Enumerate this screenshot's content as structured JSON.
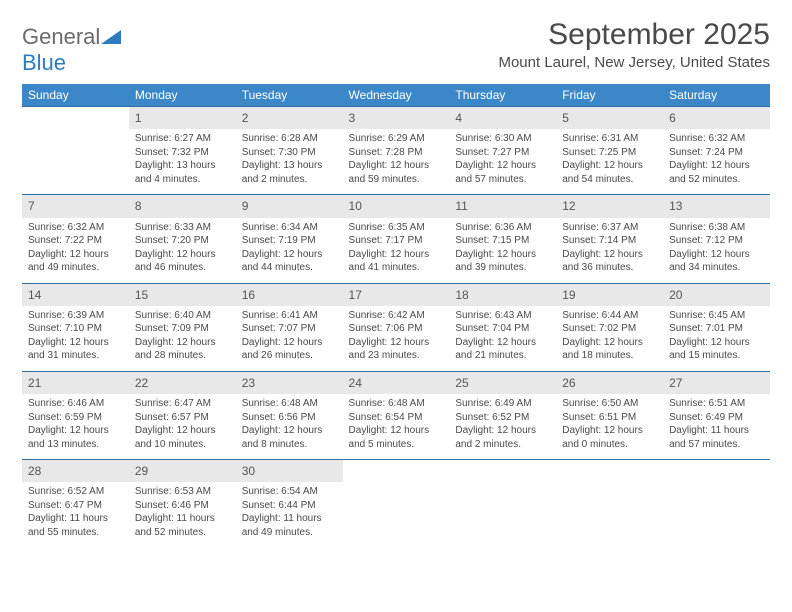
{
  "logo": {
    "word1": "General",
    "word2": "Blue"
  },
  "title": "September 2025",
  "subtitle": "Mount Laurel, New Jersey, United States",
  "colors": {
    "header_bg": "#3c87c7",
    "header_text": "#ffffff",
    "daynum_bg": "#e8e8e8",
    "row_border": "#2e6ea5",
    "text": "#4a4a4a",
    "logo_gray": "#6b6b6b",
    "logo_blue": "#2e7cc0"
  },
  "typography": {
    "title_fontsize": 30,
    "subtitle_fontsize": 15,
    "header_fontsize": 12,
    "daynum_fontsize": 12,
    "body_fontsize": 10
  },
  "dow": [
    "Sunday",
    "Monday",
    "Tuesday",
    "Wednesday",
    "Thursday",
    "Friday",
    "Saturday"
  ],
  "weeks": [
    [
      {
        "blank": true
      },
      {
        "n": "1",
        "sunrise": "Sunrise: 6:27 AM",
        "sunset": "Sunset: 7:32 PM",
        "day": "Daylight: 13 hours and 4 minutes."
      },
      {
        "n": "2",
        "sunrise": "Sunrise: 6:28 AM",
        "sunset": "Sunset: 7:30 PM",
        "day": "Daylight: 13 hours and 2 minutes."
      },
      {
        "n": "3",
        "sunrise": "Sunrise: 6:29 AM",
        "sunset": "Sunset: 7:28 PM",
        "day": "Daylight: 12 hours and 59 minutes."
      },
      {
        "n": "4",
        "sunrise": "Sunrise: 6:30 AM",
        "sunset": "Sunset: 7:27 PM",
        "day": "Daylight: 12 hours and 57 minutes."
      },
      {
        "n": "5",
        "sunrise": "Sunrise: 6:31 AM",
        "sunset": "Sunset: 7:25 PM",
        "day": "Daylight: 12 hours and 54 minutes."
      },
      {
        "n": "6",
        "sunrise": "Sunrise: 6:32 AM",
        "sunset": "Sunset: 7:24 PM",
        "day": "Daylight: 12 hours and 52 minutes."
      }
    ],
    [
      {
        "n": "7",
        "sunrise": "Sunrise: 6:32 AM",
        "sunset": "Sunset: 7:22 PM",
        "day": "Daylight: 12 hours and 49 minutes."
      },
      {
        "n": "8",
        "sunrise": "Sunrise: 6:33 AM",
        "sunset": "Sunset: 7:20 PM",
        "day": "Daylight: 12 hours and 46 minutes."
      },
      {
        "n": "9",
        "sunrise": "Sunrise: 6:34 AM",
        "sunset": "Sunset: 7:19 PM",
        "day": "Daylight: 12 hours and 44 minutes."
      },
      {
        "n": "10",
        "sunrise": "Sunrise: 6:35 AM",
        "sunset": "Sunset: 7:17 PM",
        "day": "Daylight: 12 hours and 41 minutes."
      },
      {
        "n": "11",
        "sunrise": "Sunrise: 6:36 AM",
        "sunset": "Sunset: 7:15 PM",
        "day": "Daylight: 12 hours and 39 minutes."
      },
      {
        "n": "12",
        "sunrise": "Sunrise: 6:37 AM",
        "sunset": "Sunset: 7:14 PM",
        "day": "Daylight: 12 hours and 36 minutes."
      },
      {
        "n": "13",
        "sunrise": "Sunrise: 6:38 AM",
        "sunset": "Sunset: 7:12 PM",
        "day": "Daylight: 12 hours and 34 minutes."
      }
    ],
    [
      {
        "n": "14",
        "sunrise": "Sunrise: 6:39 AM",
        "sunset": "Sunset: 7:10 PM",
        "day": "Daylight: 12 hours and 31 minutes."
      },
      {
        "n": "15",
        "sunrise": "Sunrise: 6:40 AM",
        "sunset": "Sunset: 7:09 PM",
        "day": "Daylight: 12 hours and 28 minutes."
      },
      {
        "n": "16",
        "sunrise": "Sunrise: 6:41 AM",
        "sunset": "Sunset: 7:07 PM",
        "day": "Daylight: 12 hours and 26 minutes."
      },
      {
        "n": "17",
        "sunrise": "Sunrise: 6:42 AM",
        "sunset": "Sunset: 7:06 PM",
        "day": "Daylight: 12 hours and 23 minutes."
      },
      {
        "n": "18",
        "sunrise": "Sunrise: 6:43 AM",
        "sunset": "Sunset: 7:04 PM",
        "day": "Daylight: 12 hours and 21 minutes."
      },
      {
        "n": "19",
        "sunrise": "Sunrise: 6:44 AM",
        "sunset": "Sunset: 7:02 PM",
        "day": "Daylight: 12 hours and 18 minutes."
      },
      {
        "n": "20",
        "sunrise": "Sunrise: 6:45 AM",
        "sunset": "Sunset: 7:01 PM",
        "day": "Daylight: 12 hours and 15 minutes."
      }
    ],
    [
      {
        "n": "21",
        "sunrise": "Sunrise: 6:46 AM",
        "sunset": "Sunset: 6:59 PM",
        "day": "Daylight: 12 hours and 13 minutes."
      },
      {
        "n": "22",
        "sunrise": "Sunrise: 6:47 AM",
        "sunset": "Sunset: 6:57 PM",
        "day": "Daylight: 12 hours and 10 minutes."
      },
      {
        "n": "23",
        "sunrise": "Sunrise: 6:48 AM",
        "sunset": "Sunset: 6:56 PM",
        "day": "Daylight: 12 hours and 8 minutes."
      },
      {
        "n": "24",
        "sunrise": "Sunrise: 6:48 AM",
        "sunset": "Sunset: 6:54 PM",
        "day": "Daylight: 12 hours and 5 minutes."
      },
      {
        "n": "25",
        "sunrise": "Sunrise: 6:49 AM",
        "sunset": "Sunset: 6:52 PM",
        "day": "Daylight: 12 hours and 2 minutes."
      },
      {
        "n": "26",
        "sunrise": "Sunrise: 6:50 AM",
        "sunset": "Sunset: 6:51 PM",
        "day": "Daylight: 12 hours and 0 minutes."
      },
      {
        "n": "27",
        "sunrise": "Sunrise: 6:51 AM",
        "sunset": "Sunset: 6:49 PM",
        "day": "Daylight: 11 hours and 57 minutes."
      }
    ],
    [
      {
        "n": "28",
        "sunrise": "Sunrise: 6:52 AM",
        "sunset": "Sunset: 6:47 PM",
        "day": "Daylight: 11 hours and 55 minutes."
      },
      {
        "n": "29",
        "sunrise": "Sunrise: 6:53 AM",
        "sunset": "Sunset: 6:46 PM",
        "day": "Daylight: 11 hours and 52 minutes."
      },
      {
        "n": "30",
        "sunrise": "Sunrise: 6:54 AM",
        "sunset": "Sunset: 6:44 PM",
        "day": "Daylight: 11 hours and 49 minutes."
      },
      {
        "blank": true
      },
      {
        "blank": true
      },
      {
        "blank": true
      },
      {
        "blank": true
      }
    ]
  ]
}
